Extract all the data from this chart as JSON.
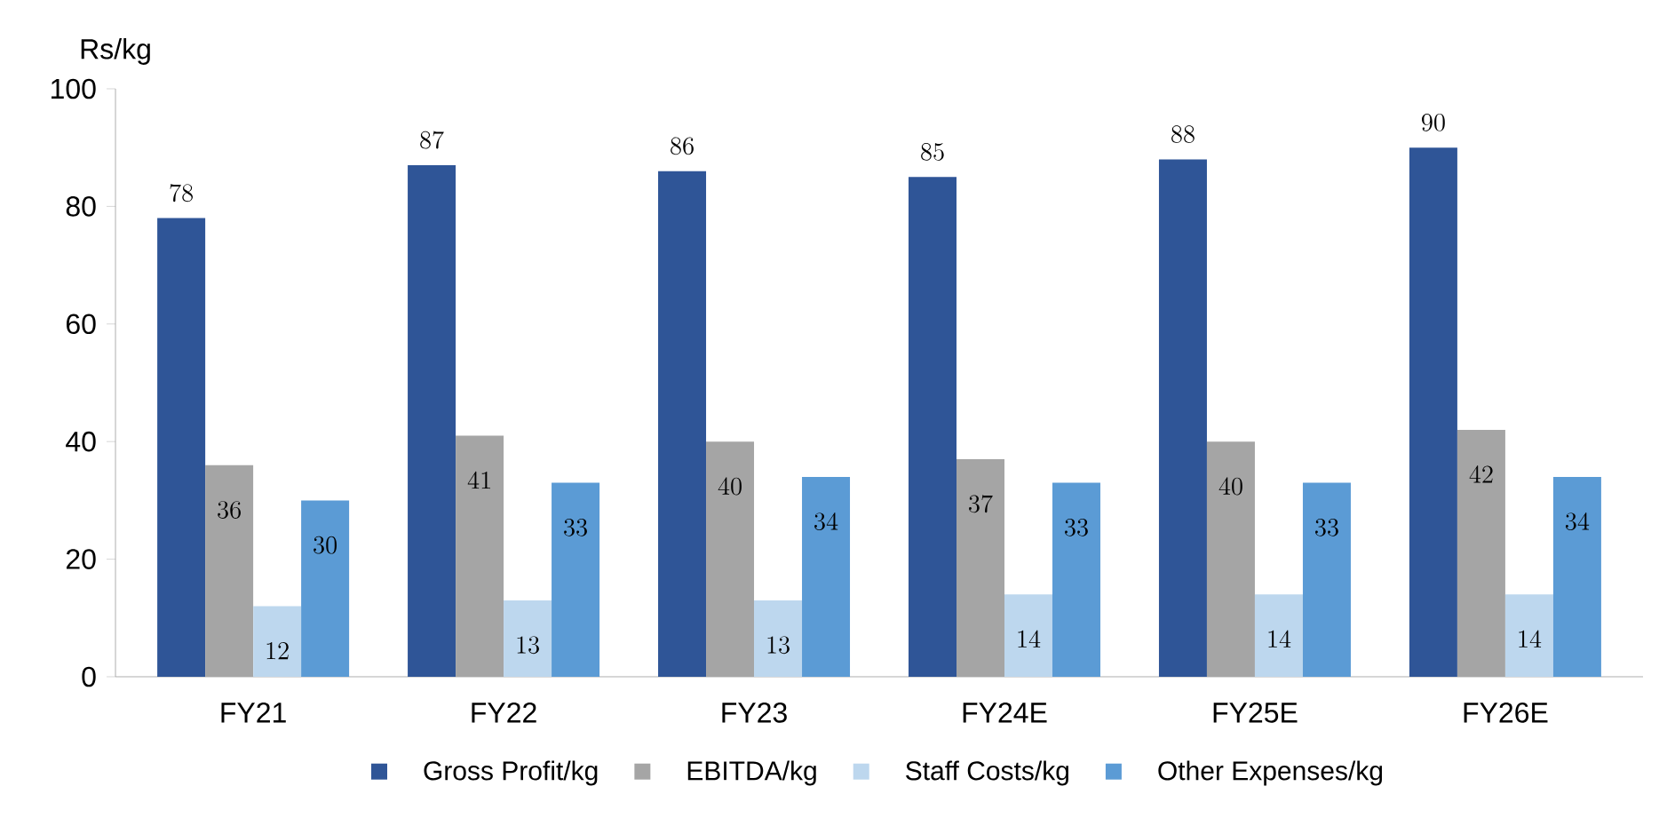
{
  "chart_data": {
    "type": "bar",
    "ylabel": "Rs/kg",
    "categories": [
      "FY21",
      "FY22",
      "FY23",
      "FY24E",
      "FY25E",
      "FY26E"
    ],
    "series": [
      {
        "name": "Gross Profit/kg",
        "color": "#2f5597",
        "values": [
          78,
          87,
          86,
          85,
          88,
          90
        ]
      },
      {
        "name": "EBITDA/kg",
        "color": "#a5a5a5",
        "values": [
          36,
          41,
          40,
          37,
          40,
          42
        ]
      },
      {
        "name": "Staff Costs/kg",
        "color": "#bdd7ee",
        "values": [
          12,
          13,
          13,
          14,
          14,
          14
        ]
      },
      {
        "name": "Other Expenses/kg",
        "color": "#5b9bd5",
        "values": [
          30,
          33,
          34,
          33,
          33,
          34
        ]
      }
    ],
    "ylim": [
      0,
      100
    ],
    "yticks": [
      0,
      20,
      40,
      60,
      80,
      100
    ],
    "grid": false,
    "legend": "bottom",
    "data_labels": true
  }
}
